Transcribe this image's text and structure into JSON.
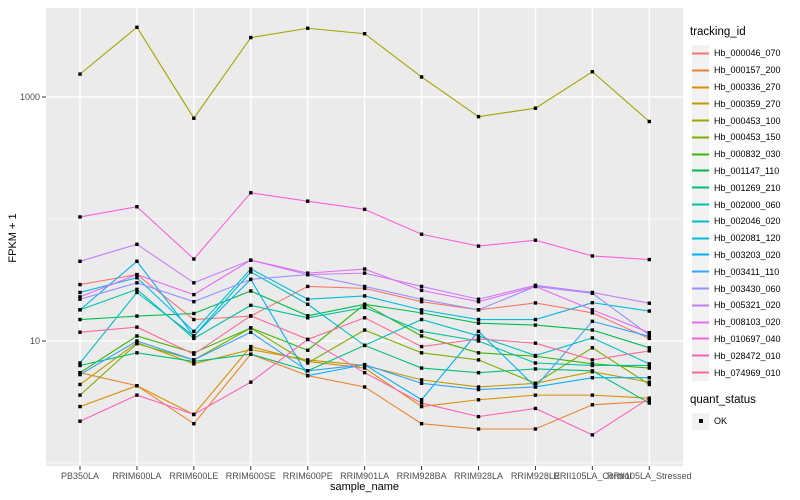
{
  "chart_data": {
    "type": "line",
    "title": "",
    "xlabel": "sample_name",
    "ylabel": "FPKM + 1",
    "yscale": "log10",
    "ylim": [
      0.95,
      5300
    ],
    "yticks": [
      {
        "value": 10,
        "label": "10"
      },
      {
        "value": 1000,
        "label": "1000"
      }
    ],
    "minor_gridlines": [
      1,
      100
    ],
    "grid": "on",
    "legend_position": "right",
    "legend_title": "tracking_id",
    "quant_legend": {
      "title": "quant_status",
      "items": [
        "OK"
      ]
    },
    "point_marker": "black-square",
    "x_categories": [
      "PB350LA",
      "RRIM600LA",
      "RRIM600LE",
      "RRIM600SE",
      "RRIM600PE",
      "RRIM901LA",
      "RRIM928BA",
      "RRIM928LA",
      "RRIM928LE",
      "RRII105LA_Control",
      "RRII105LA_Stressed"
    ],
    "series": [
      {
        "name": "Hb_000046_070",
        "color": "#F8766D",
        "values": [
          29,
          35,
          15,
          16,
          28,
          27,
          21,
          18,
          20.5,
          17,
          10.5
        ]
      },
      {
        "name": "Hb_000157_200",
        "color": "#EA8331",
        "values": [
          5.5,
          4.3,
          2.1,
          7.8,
          5.2,
          4.2,
          2.1,
          1.9,
          1.9,
          3.0,
          3.2
        ]
      },
      {
        "name": "Hb_000336_270",
        "color": "#D89000",
        "values": [
          2.9,
          4.3,
          2.5,
          9.0,
          6.8,
          6.0,
          2.9,
          3.3,
          3.6,
          3.6,
          3.4
        ]
      },
      {
        "name": "Hb_000359_270",
        "color": "#C09B00",
        "values": [
          4.4,
          9.7,
          6.5,
          8.5,
          7.0,
          6.3,
          4.8,
          4.2,
          4.5,
          5.6,
          4.6
        ]
      },
      {
        "name": "Hb_000453_100",
        "color": "#A3A500",
        "values": [
          1540,
          3730,
          670,
          3070,
          3660,
          3300,
          1460,
          690,
          810,
          1610,
          630
        ]
      },
      {
        "name": "Hb_000453_150",
        "color": "#7CAE00",
        "values": [
          3.6,
          9.5,
          7.0,
          12.8,
          6.6,
          12.3,
          8.0,
          7.0,
          4.5,
          8.8,
          4.4
        ]
      },
      {
        "name": "Hb_000832_030",
        "color": "#39B600",
        "values": [
          5.5,
          11,
          8.0,
          12.8,
          8.4,
          20,
          11,
          8.0,
          7.5,
          6.5,
          6.0
        ]
      },
      {
        "name": "Hb_001147_110",
        "color": "#00BB4E",
        "values": [
          15,
          16,
          16.8,
          25.7,
          16.1,
          20,
          17,
          14,
          13.5,
          12.3,
          8.8
        ]
      },
      {
        "name": "Hb_001269_210",
        "color": "#00BF7D",
        "values": [
          6.3,
          8.0,
          6.8,
          7.8,
          5.7,
          9.2,
          6.0,
          5.5,
          5.9,
          5.7,
          3.1
        ]
      },
      {
        "name": "Hb_002000_060",
        "color": "#00C1A3",
        "values": [
          18,
          26.5,
          10.5,
          19.6,
          15.5,
          18.8,
          12,
          10,
          6.6,
          6.3,
          6.3
        ]
      },
      {
        "name": "Hb_002046_020",
        "color": "#00BFC4",
        "values": [
          6.6,
          25,
          11,
          36.8,
          20,
          9.2,
          15,
          11,
          7.6,
          10.6,
          6.5
        ]
      },
      {
        "name": "Hb_002081_120",
        "color": "#00BAE0",
        "values": [
          25,
          33,
          12,
          39,
          22,
          23.4,
          18,
          15,
          15,
          20.6,
          17.6
        ]
      },
      {
        "name": "Hb_003203_020",
        "color": "#00B0F6",
        "values": [
          18,
          45,
          11,
          32,
          5.2,
          6.4,
          3.3,
          12,
          4.2,
          5.0,
          5.0
        ]
      },
      {
        "name": "Hb_003411_110",
        "color": "#35A2FF",
        "values": [
          5.3,
          10,
          7.0,
          11.8,
          5.7,
          6.4,
          4.5,
          4.0,
          4.2,
          14.5,
          10.9
        ]
      },
      {
        "name": "Hb_003430_060",
        "color": "#9590FF",
        "values": [
          22,
          30,
          21,
          32,
          35,
          28,
          22,
          18,
          28,
          24.6,
          11.2
        ]
      },
      {
        "name": "Hb_005321_020",
        "color": "#C77CFF",
        "values": [
          45,
          62,
          30,
          46,
          35,
          36,
          28,
          22,
          28.6,
          25,
          20.4
        ]
      },
      {
        "name": "Hb_008103_020",
        "color": "#E76BF3",
        "values": [
          23,
          35,
          24,
          46,
          36,
          38.9,
          26,
          21,
          28,
          18,
          11.7
        ]
      },
      {
        "name": "Hb_010697_040",
        "color": "#FA62DB",
        "values": [
          104,
          126,
          47,
          164,
          140,
          120,
          75,
          60,
          67,
          49.8,
          46.5
        ]
      },
      {
        "name": "Hb_028472_010",
        "color": "#FF62BC",
        "values": [
          2.2,
          3.6,
          2.5,
          4.6,
          10.3,
          5.5,
          3.1,
          2.4,
          2.8,
          1.7,
          3.4
        ]
      },
      {
        "name": "Hb_074969_010",
        "color": "#FF6A98",
        "values": [
          11.8,
          13,
          7.8,
          16.1,
          10.3,
          15.5,
          9.0,
          10.4,
          9.6,
          7.0,
          8.3
        ]
      }
    ],
    "style": {
      "panel_bg": "#EBEBEB",
      "gridline": "#FFFFFF",
      "legend_key_bg": "#F2F2F2",
      "axis_text": "#4D4D4D",
      "tick_mark": "#333333",
      "point_color": "#000000"
    }
  }
}
